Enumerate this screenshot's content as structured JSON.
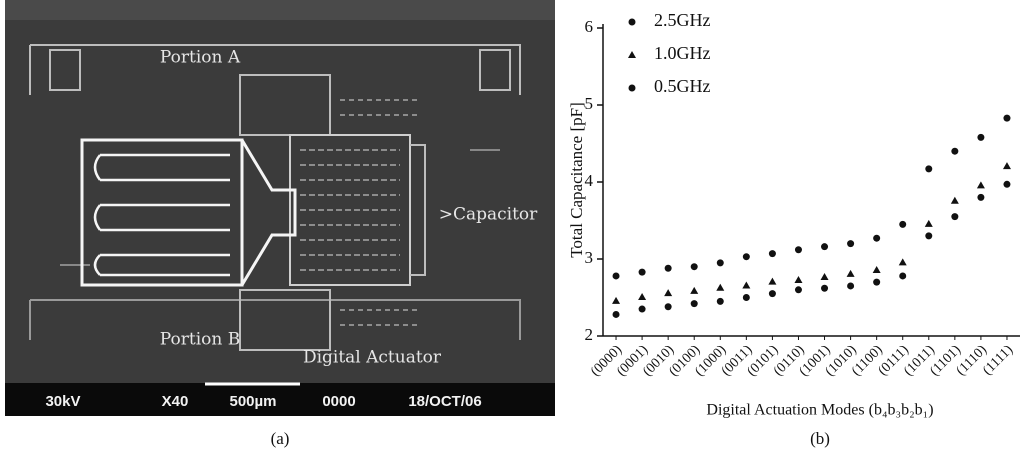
{
  "panel_a": {
    "labels": {
      "portion_a": "Portion A",
      "portion_b": "Portion B",
      "capacitor": ">Capacitor",
      "actuator": "Digital Actuator"
    },
    "scale_bar": [
      "30kV",
      "X40",
      "500µm",
      "0000",
      "18/OCT/06"
    ],
    "caption": "(a)"
  },
  "chart_data": {
    "type": "scatter",
    "caption": "(b)",
    "y_label": "Total Capacitance [pF]",
    "x_label": "Digital Actuation Modes (b₄b₃b₂b₁)",
    "categories": [
      "(0000)",
      "(0001)",
      "(0010)",
      "(0100)",
      "(1000)",
      "(0011)",
      "(0101)",
      "(0110)",
      "(1001)",
      "(1010)",
      "(1100)",
      "(0111)",
      "(1011)",
      "(1101)",
      "(1110)",
      "(1111)"
    ],
    "ylim": [
      2,
      6
    ],
    "yticks": [
      2,
      3,
      4,
      5,
      6
    ],
    "legend": "upper left",
    "series": [
      {
        "name": "2.5GHz",
        "color": "#111111",
        "marker": "circle",
        "values": [
          2.78,
          2.83,
          2.88,
          2.9,
          2.95,
          3.03,
          3.07,
          3.12,
          3.16,
          3.2,
          3.27,
          3.45,
          4.17,
          4.4,
          4.58,
          4.83
        ]
      },
      {
        "name": "1.0GHz",
        "color": "#111111",
        "marker": "triangle",
        "values": [
          2.45,
          2.5,
          2.55,
          2.58,
          2.62,
          2.65,
          2.7,
          2.72,
          2.76,
          2.8,
          2.85,
          2.95,
          3.45,
          3.75,
          3.95,
          4.2
        ]
      },
      {
        "name": "0.5GHz",
        "color": "#111111",
        "marker": "circle",
        "values": [
          2.28,
          2.35,
          2.38,
          2.42,
          2.45,
          2.5,
          2.55,
          2.6,
          2.62,
          2.65,
          2.7,
          2.78,
          3.3,
          3.55,
          3.8,
          3.97
        ]
      }
    ]
  }
}
